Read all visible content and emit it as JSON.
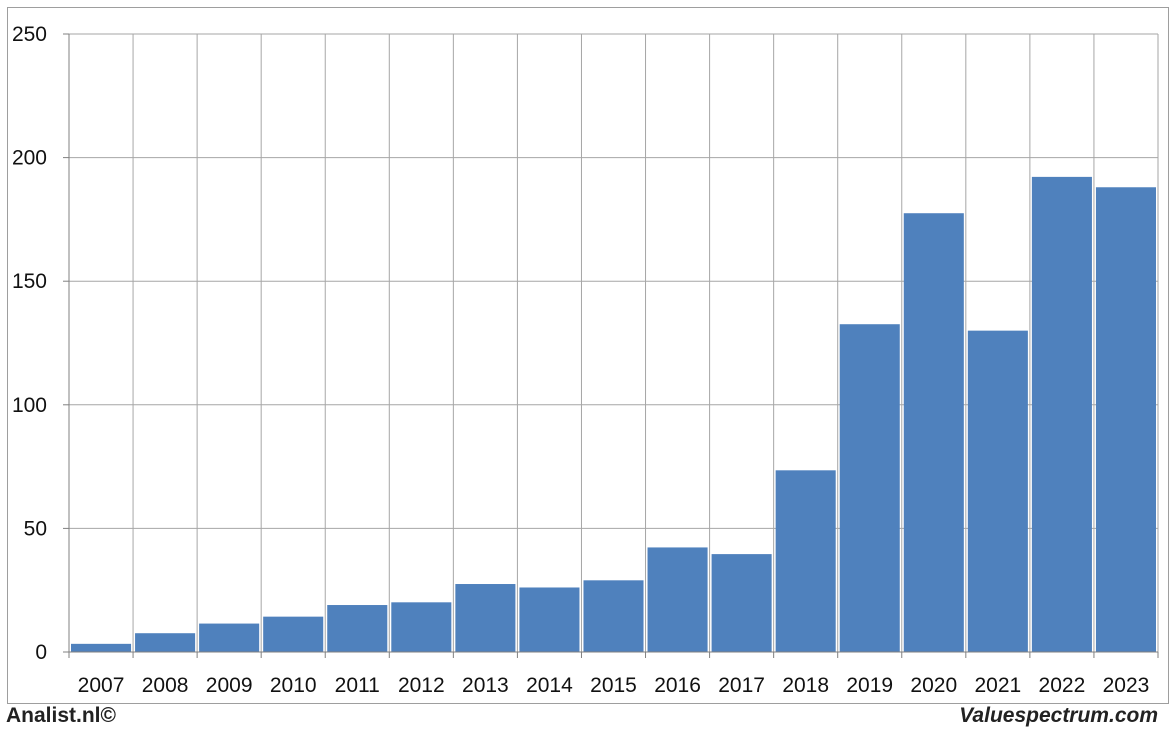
{
  "chart_data": {
    "type": "bar",
    "categories": [
      "2007",
      "2008",
      "2009",
      "2010",
      "2011",
      "2012",
      "2013",
      "2014",
      "2015",
      "2016",
      "2017",
      "2018",
      "2019",
      "2020",
      "2021",
      "2022",
      "2023"
    ],
    "values": [
      3.3,
      7.6,
      11.5,
      14.3,
      19.0,
      20.1,
      27.5,
      26.1,
      29.0,
      42.3,
      39.6,
      73.5,
      132.6,
      177.5,
      130.0,
      192.2,
      188.0
    ],
    "ylim": [
      0,
      250
    ],
    "yticks": [
      0,
      50,
      100,
      150,
      200,
      250
    ],
    "grid": true,
    "title": "",
    "xlabel": "",
    "ylabel": ""
  },
  "colors": {
    "bar": "#4f81bd",
    "grid": "#a6a6a6",
    "axis": "#808080"
  },
  "footer": {
    "left": "Analist.nl©",
    "right": "Valuespectrum.com"
  }
}
